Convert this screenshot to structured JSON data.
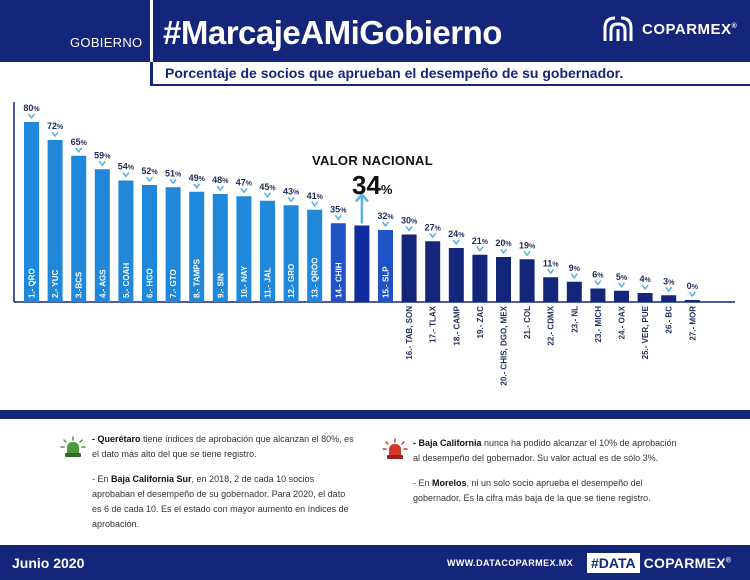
{
  "header": {
    "section": "GOBIERNO",
    "title": "#MarcajeAMiGobierno",
    "brand": "COPARMEX",
    "brand_mark": "®"
  },
  "subtitle": "Porcentaje de socios que aprueban el desempeño de su gobernador.",
  "national": {
    "label": "VALOR NACIONAL",
    "value": "34",
    "unit": "%"
  },
  "chart_data": {
    "type": "bar",
    "title": "Porcentaje de socios que aprueban el desempeño de su gobernador.",
    "xlabel": "",
    "ylabel": "",
    "ylim": [
      0,
      80
    ],
    "unit": "%",
    "reference_value": 34,
    "reference_label": "VALOR NACIONAL",
    "categories": [
      "1.- QRO",
      "2.- YUC",
      "3.-BCS",
      "4.- AGS",
      "5.- COAH",
      "6.- HGO",
      "7.- GTO",
      "8.- TAMPS",
      "9.- SIN",
      "10.- NAY",
      "11.- JAL",
      "12.- GRO",
      "13.- QROO",
      "14.- CHIH",
      "",
      "15.- SLP",
      "16.- TAB, SON",
      "17.- TLAX",
      "18.- CAMP",
      "19.- ZAC",
      "20.- CHIS, DGO, MEX",
      "21.- COL",
      "22.- CDMX",
      "23.- NL",
      "23.- MICH",
      "24.- OAX",
      "25.- VER, PUE",
      "26.- BC",
      "27.- MOR"
    ],
    "values": [
      80,
      72,
      65,
      59,
      54,
      52,
      51,
      49,
      48,
      47,
      45,
      43,
      41,
      35,
      34,
      32,
      30,
      27,
      24,
      21,
      20,
      19,
      11,
      9,
      6,
      5,
      4,
      3,
      0
    ],
    "value_labels": [
      "80",
      "72",
      "65",
      "59",
      "54",
      "52",
      "51",
      "49",
      "48",
      "47",
      "45",
      "43",
      "41",
      "35",
      "",
      "32",
      "30",
      "27",
      "24",
      "21",
      "20",
      "19",
      "11",
      "9",
      "6",
      "5",
      "4",
      "3",
      "0"
    ],
    "series_colors": {
      "above": "#2088da",
      "middle": "#1f52c4",
      "national": "#0f2d9e",
      "below": "#13267a"
    }
  },
  "notes_left": {
    "p1_bold": "- Querétaro",
    "p1_text": " tiene índices de aprobación que alcanzan el 80%, es el dato más alto del que se tiene registro.",
    "p2_pre": "- En ",
    "p2_bold": "Baja California Sur",
    "p2_text": ", en 2018, 2 de cada 10 socios aprobaban el desempeño de su gobernador. Para 2020, el dato es 6 de cada 10. Es el estado con mayor aumento en índices de aprobación."
  },
  "notes_right": {
    "p1_bold": "- Baja California",
    "p1_text": " nunca ha podido alcanzar el 10% de aprobación al desempeño del gobernador. Su valor actual es de sólo 3%.",
    "p2_pre": "- En ",
    "p2_bold": "Morelos",
    "p2_text": ", ni un solo socio aprueba el desempeño del gobernador. Es la cifra más baja de la que se tiene registro."
  },
  "footer": {
    "date": "Junio 2020",
    "website": "WWW.DATACOPARMEX.MX",
    "data_tag": "#DATA",
    "brand": "COPARMEX",
    "brand_mark": "®"
  },
  "colors": {
    "navy": "#13267a",
    "light_blue": "#2088da",
    "green_siren": "#4a9a3a",
    "red_siren": "#d3372b"
  }
}
